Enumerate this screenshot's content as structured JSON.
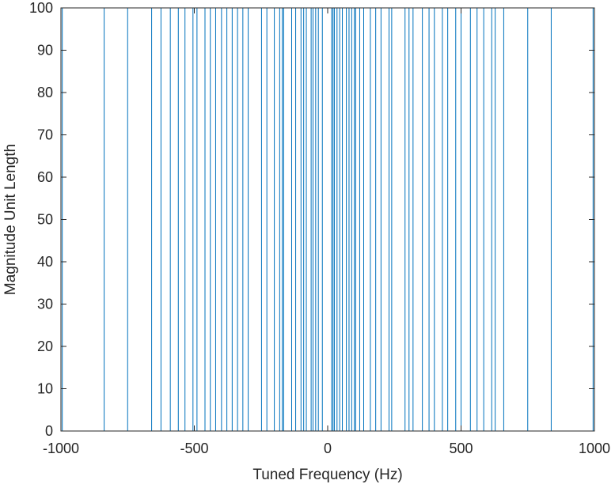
{
  "chart_data": {
    "type": "line",
    "title": "",
    "xlabel": "Tuned Frequency (Hz)",
    "ylabel": "Magnitude Unit Length",
    "xlim": [
      -1000,
      1000
    ],
    "ylim": [
      0,
      100
    ],
    "grid": false,
    "xticks": [
      -1000,
      -500,
      0,
      500,
      1000
    ],
    "xtick_labels": [
      "-1000",
      "-500",
      "0",
      "500",
      "1000"
    ],
    "yticks": [
      0,
      10,
      20,
      30,
      40,
      50,
      60,
      70,
      80,
      90,
      100
    ],
    "ytick_labels": [
      "0",
      "10",
      "20",
      "30",
      "40",
      "50",
      "60",
      "70",
      "80",
      "90",
      "100"
    ],
    "baseline": 0,
    "spike_height": 100,
    "spike_x": [
      -995,
      -838,
      -750,
      -660,
      -625,
      -590,
      -560,
      -535,
      -505,
      -490,
      -460,
      -440,
      -420,
      -398,
      -378,
      -358,
      -338,
      -318,
      -298,
      -248,
      -228,
      -200,
      -180,
      -170,
      -165,
      -135,
      -120,
      -100,
      -90,
      -80,
      -62,
      -55,
      -45,
      -35,
      -20,
      15,
      20,
      25,
      35,
      45,
      55,
      70,
      80,
      90,
      100,
      105,
      120,
      135,
      160,
      180,
      200,
      230,
      240,
      290,
      305,
      320,
      355,
      380,
      400,
      430,
      450,
      480,
      500,
      535,
      560,
      585,
      615,
      628,
      660,
      750,
      838,
      995
    ],
    "colors": {
      "series": "#0072BD",
      "axes": "#262626"
    }
  }
}
